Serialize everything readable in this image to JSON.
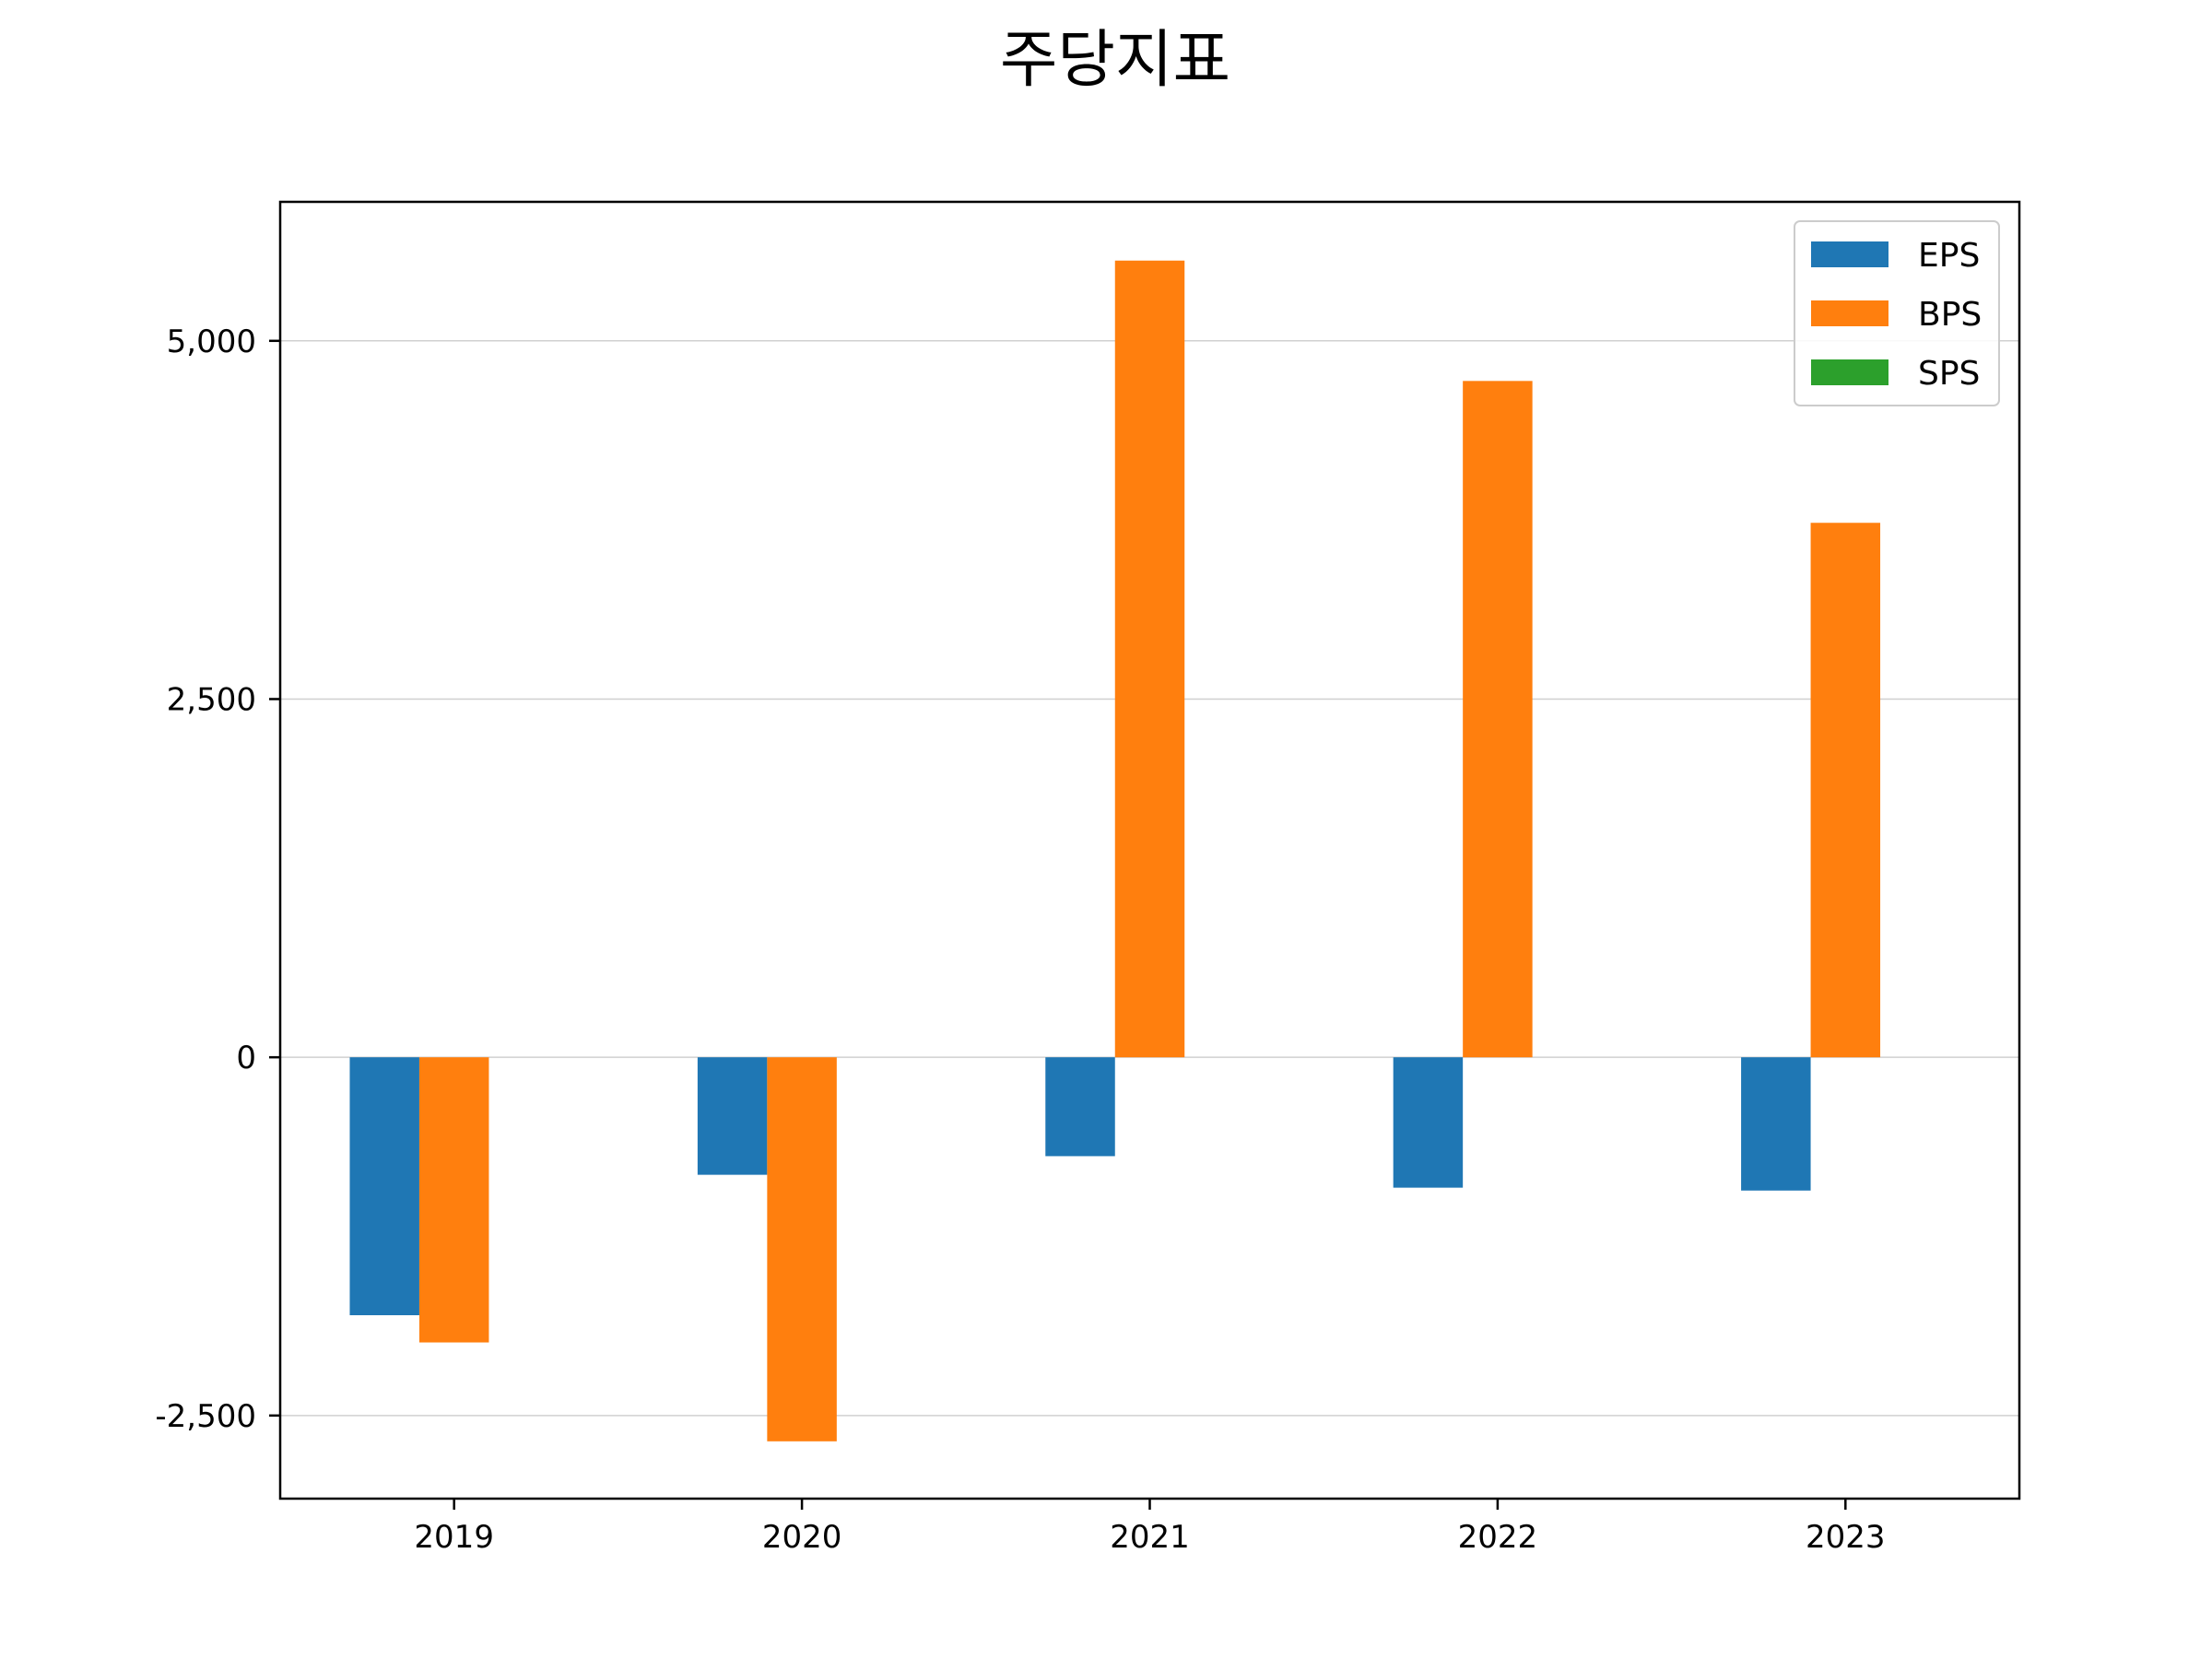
{
  "chart_data": {
    "type": "bar",
    "title": "주당지표",
    "xlabel": "",
    "ylabel": "",
    "categories": [
      "2019",
      "2020",
      "2021",
      "2022",
      "2023"
    ],
    "series": [
      {
        "name": "EPS",
        "color": "#1f77b4",
        "values": [
          -1800,
          -820,
          -690,
          -910,
          -930
        ]
      },
      {
        "name": "BPS",
        "color": "#ff7f0e",
        "values": [
          -1990,
          -2680,
          5560,
          4720,
          3730
        ]
      },
      {
        "name": "SPS",
        "color": "#2ca02c",
        "values": [
          0,
          0,
          0,
          0,
          0
        ]
      }
    ],
    "yticks": [
      -2500,
      0,
      2500,
      5000
    ],
    "ytick_labels": [
      "-2,500",
      "0",
      "2,500",
      "5,000"
    ],
    "ylim": [
      -3080,
      5970
    ],
    "grid": true,
    "legend_position": "top-right"
  }
}
